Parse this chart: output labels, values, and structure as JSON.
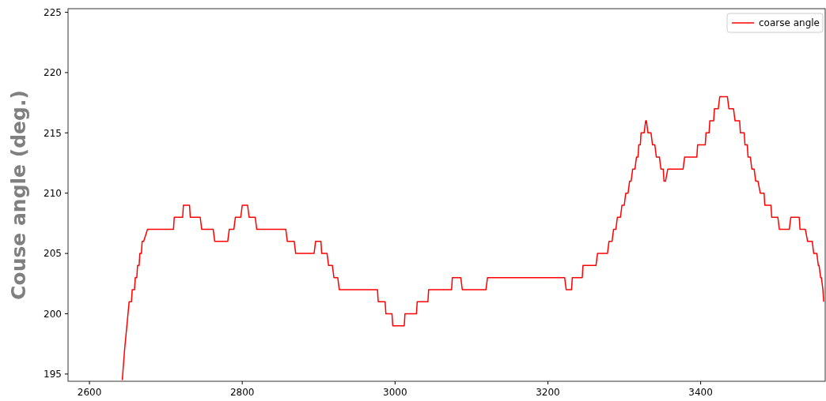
{
  "chart_data": {
    "type": "line",
    "ylabel": "Couse angle (deg.)",
    "xlim": [
      2572,
      3563
    ],
    "ylim": [
      194.4,
      225.3
    ],
    "xticks": [
      2600,
      2800,
      3000,
      3200,
      3400
    ],
    "yticks": [
      195,
      200,
      205,
      210,
      215,
      220,
      225
    ],
    "legend": "top right",
    "grid": false,
    "line_style": "solid",
    "series": [
      {
        "name": "coarse angle",
        "color": "#ff0000",
        "x": [
          2643,
          2646,
          2652,
          2655,
          2656,
          2659,
          2660,
          2662,
          2663,
          2665,
          2666,
          2668,
          2669,
          2671,
          2676,
          2710,
          2711,
          2722,
          2723,
          2731,
          2732,
          2745,
          2747,
          2762,
          2764,
          2781,
          2783,
          2789,
          2791,
          2798,
          2800,
          2807,
          2809,
          2817,
          2819,
          2857,
          2859,
          2868,
          2870,
          2894,
          2896,
          2903,
          2904,
          2911,
          2913,
          2918,
          2920,
          2925,
          2927,
          2977,
          2978,
          2987,
          2988,
          2996,
          2997,
          3012,
          3013,
          3028,
          3029,
          3043,
          3044,
          3074,
          3075,
          3086,
          3088,
          3119,
          3121,
          3222,
          3224,
          3231,
          3232,
          3245,
          3246,
          3263,
          3265,
          3278,
          3280,
          3284,
          3286,
          3289,
          3291,
          3295,
          3297,
          3300,
          3302,
          3305,
          3307,
          3309,
          3311,
          3314,
          3316,
          3318,
          3319,
          3321,
          3322,
          3326,
          3328,
          3329,
          3331,
          3335,
          3337,
          3340,
          3342,
          3346,
          3348,
          3351,
          3352,
          3354,
          3357,
          3377,
          3379,
          3395,
          3396,
          3406,
          3407,
          3411,
          3412,
          3417,
          3418,
          3423,
          3425,
          3435,
          3437,
          3443,
          3445,
          3451,
          3452,
          3457,
          3458,
          3461,
          3462,
          3465,
          3467,
          3470,
          3472,
          3475,
          3478,
          3483,
          3484,
          3492,
          3493,
          3501,
          3503,
          3516,
          3518,
          3529,
          3530,
          3537,
          3540,
          3546,
          3548,
          3552,
          3554,
          3555,
          3557,
          3558,
          3560,
          3561
        ],
        "values": [
          194.5,
          197,
          201,
          201,
          202,
          202,
          203,
          203,
          204,
          204,
          205,
          205,
          206,
          206,
          207,
          207,
          208,
          208,
          209,
          209,
          208,
          208,
          207,
          207,
          206,
          206,
          207,
          207,
          208,
          208,
          209,
          209,
          208,
          208,
          207,
          207,
          206,
          206,
          205,
          205,
          206,
          206,
          205,
          205,
          204,
          204,
          203,
          203,
          202,
          202,
          201,
          201,
          200,
          200,
          199,
          199,
          200,
          200,
          201,
          201,
          202,
          202,
          203,
          203,
          202,
          202,
          203,
          203,
          202,
          202,
          203,
          203,
          204,
          204,
          205,
          205,
          206,
          206,
          207,
          207,
          208,
          208,
          209,
          209,
          210,
          210,
          211,
          211,
          212,
          212,
          213,
          213,
          214,
          214,
          215,
          215,
          216,
          216,
          215,
          215,
          214,
          214,
          213,
          213,
          212,
          212,
          211,
          211,
          212,
          212,
          213,
          213,
          214,
          214,
          215,
          215,
          216,
          216,
          217,
          217,
          218,
          218,
          217,
          217,
          216,
          216,
          215,
          215,
          214,
          214,
          213,
          213,
          212,
          212,
          211,
          211,
          210,
          210,
          209,
          209,
          208,
          208,
          207,
          207,
          208,
          208,
          207,
          207,
          206,
          206,
          205,
          205,
          204,
          204,
          203,
          203,
          202,
          201
        ]
      }
    ]
  }
}
